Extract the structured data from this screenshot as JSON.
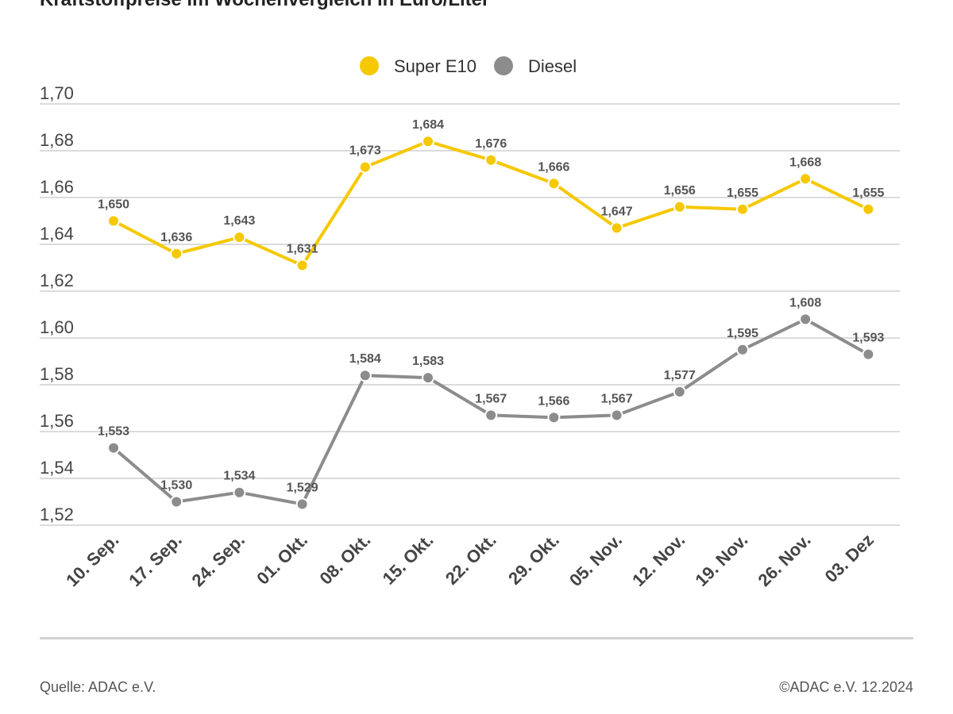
{
  "title": "Kraftstoffpreise im Wochenvergleich in Euro/Liter",
  "source": "Quelle: ADAC e.V.",
  "copyright": "©ADAC e.V. 12.2024",
  "chart_data": {
    "type": "line",
    "title": "Kraftstoffpreise im Wochenvergleich in Euro/Liter",
    "xlabel": "",
    "ylabel": "",
    "ylim": [
      1.52,
      1.7
    ],
    "yticks": [
      "1,52",
      "1,54",
      "1,56",
      "1,58",
      "1,60",
      "1,62",
      "1,64",
      "1,66",
      "1,68",
      "1,70"
    ],
    "categories": [
      "10. Sep.",
      "17. Sep.",
      "24. Sep.",
      "01. Okt.",
      "08. Okt.",
      "15. Okt.",
      "22. Okt.",
      "29. Okt.",
      "05. Nov.",
      "12. Nov.",
      "19. Nov.",
      "26. Nov.",
      "03. Dez"
    ],
    "legend_position": "top",
    "grid": true,
    "series": [
      {
        "name": "Super E10",
        "color": "#f5c800",
        "values": [
          1.65,
          1.636,
          1.643,
          1.631,
          1.673,
          1.684,
          1.676,
          1.666,
          1.647,
          1.656,
          1.655,
          1.668,
          1.655
        ],
        "labels": [
          "1,650",
          "1,636",
          "1,643",
          "1,631",
          "1,673",
          "1,684",
          "1,676",
          "1,666",
          "1,647",
          "1,656",
          "1,655",
          "1,668",
          "1,655"
        ]
      },
      {
        "name": "Diesel",
        "color": "#8c8c8c",
        "values": [
          1.553,
          1.53,
          1.534,
          1.529,
          1.584,
          1.583,
          1.567,
          1.566,
          1.567,
          1.577,
          1.595,
          1.608,
          1.593
        ],
        "labels": [
          "1,553",
          "1,530",
          "1,534",
          "1,529",
          "1,584",
          "1,583",
          "1,567",
          "1,566",
          "1,567",
          "1,577",
          "1,595",
          "1,608",
          "1,593"
        ]
      }
    ]
  }
}
